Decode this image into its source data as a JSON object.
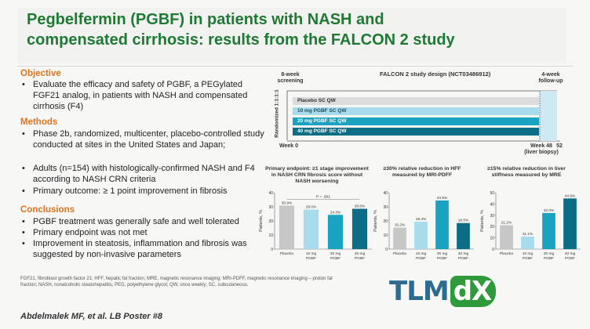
{
  "title": {
    "line1": "Pegbelfermin (PGBF) in patients with NASH and",
    "line2": "compensated cirrhosis: results from the FALCON 2 study"
  },
  "objective": {
    "heading": "Objective",
    "bullets": [
      "Evaluate the efficacy and safety of PGBF, a PEGylated FGF21 analog, in patients with NASH and compensated cirrhosis (F4)"
    ]
  },
  "methods": {
    "heading": "Methods",
    "bullets": [
      "Phase 2b, randomized, multicenter, placebo-controlled study conducted at sites in the United States and Japan;",
      "Adults (n=154) with histologically-confirmed NASH and F4 according to NASH CRN criteria",
      "Primary outcome:  ≥ 1 point improvement in fibrosis"
    ]
  },
  "conclusions": {
    "heading": "Conclusions",
    "bullets": [
      "PGBF treatment was generally safe and well tolerated",
      "Primary endpoint was not met",
      "Improvement in steatosis, inflammation and fibrosis was suggested by non-invasive parameters"
    ]
  },
  "design": {
    "title": "FALCON 2 study design (NCT03486912)",
    "screening": "8-week screening",
    "followup": "4-week follow-up",
    "randomized": "Randomized 1:1:1:1",
    "arms": [
      "Placebo SC QW",
      "10 mg PGBF SC QW",
      "20 mg PGBF SC QW",
      "40 mg PGBF SC QW"
    ],
    "week0": "Week 0",
    "week48": "Week 48 (liver biopsy)",
    "week52": "52",
    "colors": {
      "placebo": "#dcdcdc",
      "arm10": "#a8dcec",
      "arm20": "#1aa3c0",
      "arm40": "#0c6d86"
    }
  },
  "chart_data": [
    {
      "type": "bar",
      "title": "Primary endpoint: ≥1 stage improvement in NASH CRN fibrosis score without NASH worsening",
      "ylabel": "Patients, %",
      "ylim": [
        0,
        40
      ],
      "yticks": [
        0,
        10,
        20,
        30,
        40
      ],
      "categories": [
        "Placebo",
        "10 mg PGBF",
        "20 mg PGBF",
        "40 mg PGBF"
      ],
      "values": [
        30.9,
        28.0,
        24.3,
        28.6
      ],
      "value_labels": [
        "30.9%",
        "28.0%",
        "24.3%",
        "28.6%"
      ],
      "annotation": "P = .901",
      "colors": [
        "#c7c7c7",
        "#a8dcec",
        "#1aa3c0",
        "#0c6d86"
      ]
    },
    {
      "type": "bar",
      "title": "≥30% relative reduction in HFF measured by MRI-PDFF",
      "ylabel": "Patients, %",
      "ylim": [
        0,
        40
      ],
      "yticks": [
        0,
        10,
        20,
        30,
        40
      ],
      "categories": [
        "Placebo",
        "10 mg PGBF",
        "20 mg PGBF",
        "40 mg PGBF"
      ],
      "values": [
        15.2,
        19.4,
        34.5,
        18.5
      ],
      "value_labels": [
        "15.2%",
        "19.4%",
        "34.5%",
        "18.5%"
      ],
      "colors": [
        "#c7c7c7",
        "#a8dcec",
        "#1aa3c0",
        "#0c6d86"
      ]
    },
    {
      "type": "bar",
      "title": "≥15% relative reduction in liver stiffness measured by MRE",
      "ylabel": "Patients, %",
      "ylim": [
        0,
        50
      ],
      "yticks": [
        0,
        10,
        20,
        30,
        40,
        50
      ],
      "categories": [
        "Placebo",
        "10 mg PGBF",
        "20 mg PGBF",
        "40 mg PGBF"
      ],
      "values": [
        21.2,
        11.1,
        32.0,
        44.9
      ],
      "value_labels": [
        "21.2%",
        "11.1%",
        "32.0%",
        "44.9%"
      ],
      "colors": [
        "#c7c7c7",
        "#a8dcec",
        "#1aa3c0",
        "#0c6d86"
      ]
    }
  ],
  "footnote": "FGF21, fibroblast growth factor 21; HFF, hepatic fat fraction; MRE, magnetic resonance imaging; MRI-PDFF, magnetic resonance imaging – proton fat fraction; NASH, nonalcoholic steatohepatitis; PEG, polyethylene glycol; QW, once weekly; SC, subcutaneous.",
  "author": "Abdelmalek MF, et al.  LB Poster #8",
  "logo": {
    "part1": "TLM",
    "part2": "dX"
  }
}
